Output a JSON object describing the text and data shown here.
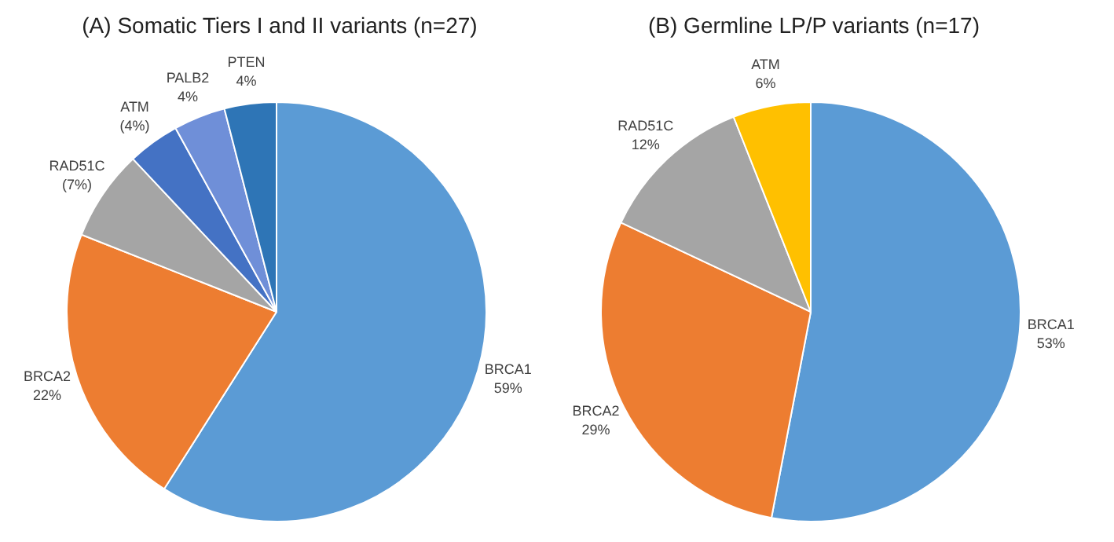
{
  "chart_data": [
    {
      "type": "pie",
      "title": "(A) Somatic Tiers I and II variants (n=27)",
      "categories": [
        "BRCA1",
        "BRCA2",
        "RAD51C",
        "ATM",
        "PALB2",
        "PTEN"
      ],
      "values": [
        59,
        22,
        7,
        4,
        4,
        4
      ],
      "value_labels": [
        "59%",
        "22%",
        "(7%)",
        "(4%)",
        "4%",
        "4%"
      ],
      "colors": [
        "#5b9bd5",
        "#ed7d31",
        "#a5a5a5",
        "#4472c4",
        "#6f8fd8",
        "#2e75b6"
      ],
      "legend": false
    },
    {
      "type": "pie",
      "title": "(B) Germline LP/P variants (n=17)",
      "categories": [
        "BRCA1",
        "BRCA2",
        "RAD51C",
        "ATM"
      ],
      "values": [
        53,
        29,
        12,
        6
      ],
      "value_labels": [
        "53%",
        "29%",
        "12%",
        "6%"
      ],
      "colors": [
        "#5b9bd5",
        "#ed7d31",
        "#a5a5a5",
        "#ffc000"
      ],
      "legend": false
    }
  ]
}
